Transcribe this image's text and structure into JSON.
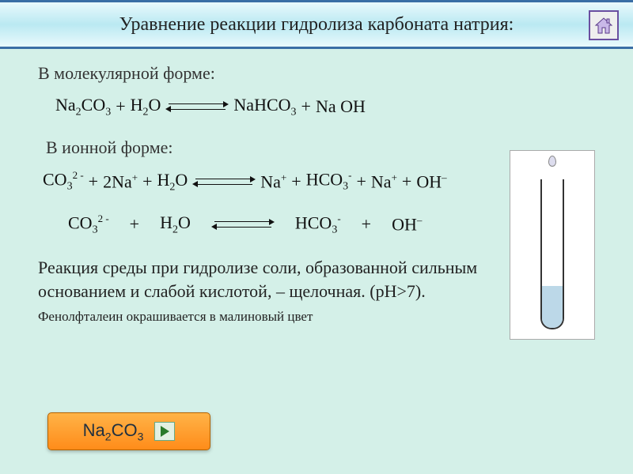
{
  "title": "Уравнение реакции гидролиза карбоната натрия:",
  "section_molecular": "В молекулярной форме:",
  "section_ionic": "В ионной форме:",
  "eq1": {
    "l1": "Na",
    "l1s": "2",
    "l2": "CO",
    "l2s": "3",
    "plus1": "+",
    "h2o": "H",
    "h2os": "2",
    "o": "O",
    "r1": "NaHCO",
    "r1s": "3",
    "plus2": "+",
    "r2": "Na OH"
  },
  "eq2": {
    "a": "CO",
    "as1": "3",
    "asup": "2 -",
    "plus1": "+",
    "b": "2Na",
    "bsup": "+",
    "plus2": "+",
    "c": "H",
    "cs": "2",
    "co": "O",
    "d": "Na",
    "dsup": "+",
    "plus3": "+",
    "e": "HCO",
    "es": "3",
    "esup": "-",
    "plus4": "+",
    "f": "Na",
    "fsup": "+",
    "plus5": "+",
    "g": "OH",
    "gsup": "–"
  },
  "eq3": {
    "a": "CO",
    "as1": "3",
    "asup": "2 -",
    "plus1": "+",
    "c": "H",
    "cs": "2",
    "co": "O",
    "e": "HCO",
    "es": "3",
    "esup": "-",
    "plus4": "+",
    "g": "OH",
    "gsup": "–"
  },
  "desc": "Реакция среды при гидролизе соли, образованной сильным основанием и слабой кислотой, – щелочная. (рН>7).",
  "desc2": "Фенолфталеин окрашивается в малиновый цвет",
  "button_label_pre": "Na",
  "button_label_sub": "2",
  "button_label_post": "CO",
  "button_label_sub2": "3",
  "tube": {
    "liquid_color": "#bcd8e8",
    "liquid_height_pct": 28
  },
  "colors": {
    "page_bg": "#d4f0e8",
    "title_border": "#3a6ea5",
    "btn_grad_top": "#ffb347",
    "btn_grad_bot": "#ff8c1a"
  }
}
